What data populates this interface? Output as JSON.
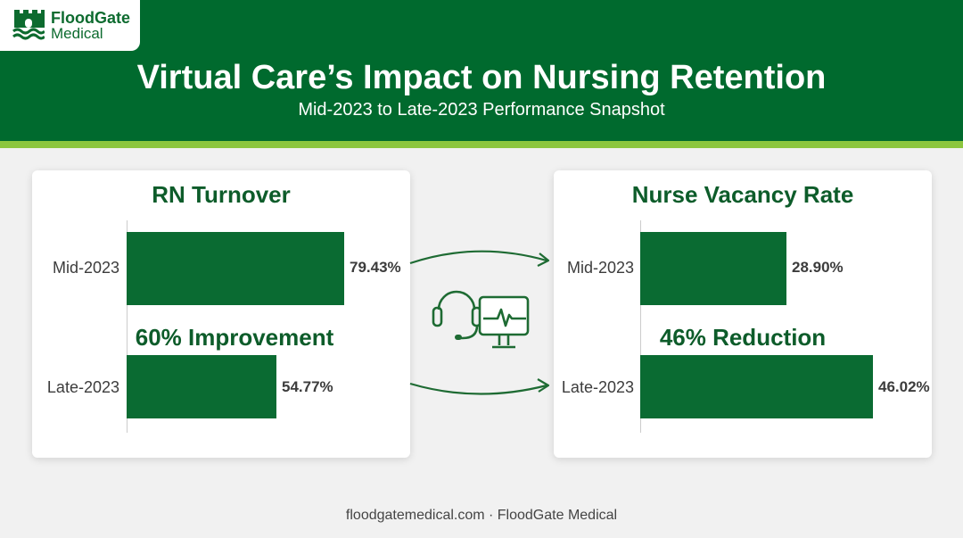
{
  "brand": {
    "name": "FloodGate",
    "sub": "Medical"
  },
  "title": "Virtual Care’s Impact on Nursing Retention",
  "subtitle": "Mid-2023 to Late-2023 Performance Snapshot",
  "footer": "floodgatemedical.com · FloodGate Medical",
  "icons": {
    "logo": "castle-logo-icon",
    "center": "headset-monitor-icon",
    "arrows": "arrow-right-icon"
  },
  "colors": {
    "header": "#006a2e",
    "accent": "#8cc63f",
    "bar": "#0a6b32",
    "title_text": "#0d5c2a"
  },
  "chart_data": [
    {
      "type": "bar",
      "orientation": "horizontal",
      "title": "RN Turnover",
      "categories": [
        "Mid-2023",
        "Late-2023"
      ],
      "values": [
        79.43,
        54.77
      ],
      "labels": [
        "79.43%",
        "54.77%"
      ],
      "unit": "%",
      "annotation": "60% Improvement"
    },
    {
      "type": "bar",
      "orientation": "horizontal",
      "title": "Nurse Vacancy Rate",
      "categories": [
        "Mid-2023",
        "Late-2023"
      ],
      "values": [
        28.9,
        46.02
      ],
      "labels": [
        "28.90%",
        "46.02%"
      ],
      "unit": "%",
      "annotation": "46% Reduction"
    }
  ]
}
